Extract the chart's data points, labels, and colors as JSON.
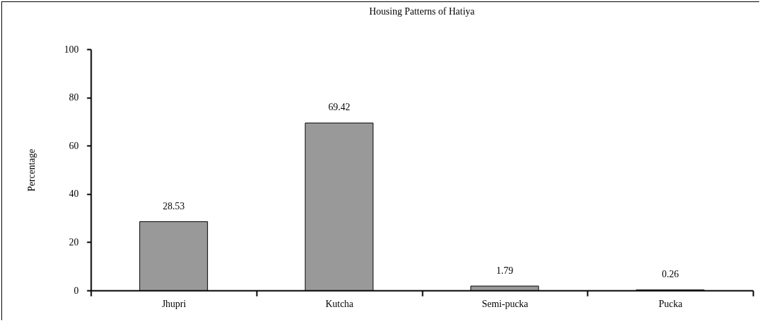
{
  "chart_data": {
    "type": "bar",
    "title": "Housing Patterns of Hatiya",
    "ylabel": "Percentage",
    "categories": [
      "Jhupri",
      "Kutcha",
      "Semi-pucka",
      "Pucka"
    ],
    "values": [
      28.53,
      69.42,
      1.79,
      0.26
    ],
    "color": "#999999",
    "ylim": [
      0,
      100
    ],
    "yticks": [
      0,
      20,
      40,
      60,
      80,
      100
    ],
    "grid": false,
    "data_labels": true
  }
}
